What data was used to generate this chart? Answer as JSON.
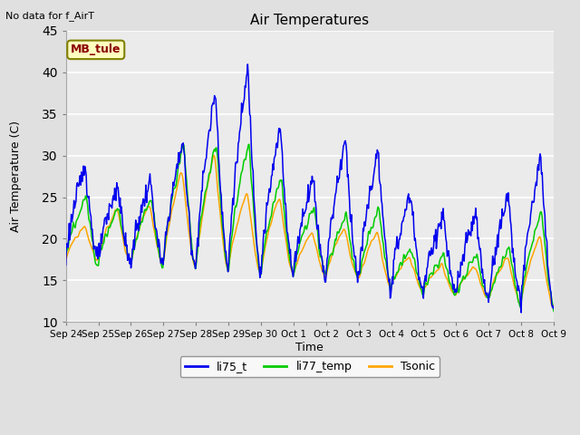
{
  "title": "Air Temperatures",
  "xlabel": "Time",
  "ylabel": "Air Temperature (C)",
  "no_data_text": "No data for f_AirT",
  "legend_label": "MB_tule",
  "ylim": [
    10,
    45
  ],
  "line_colors": {
    "li75_t": "#0000EE",
    "li77_temp": "#00CC00",
    "Tsonic": "#FFA500"
  },
  "fig_bg": "#E0E0E0",
  "plot_bg": "#EBEBEB",
  "grid_color": "#FFFFFF",
  "tick_labels": [
    "Sep 24",
    "Sep 25",
    "Sep 26",
    "Sep 27",
    "Sep 28",
    "Sep 29",
    "Sep 30",
    "Oct 1",
    "Oct 2",
    "Oct 3",
    "Oct 4",
    "Oct 5",
    "Oct 6",
    "Oct 7",
    "Oct 8",
    "Oct 9"
  ],
  "yticks": [
    10,
    15,
    20,
    25,
    30,
    35,
    40,
    45
  ],
  "num_points": 720,
  "figsize": [
    6.4,
    4.8
  ],
  "dpi": 100
}
